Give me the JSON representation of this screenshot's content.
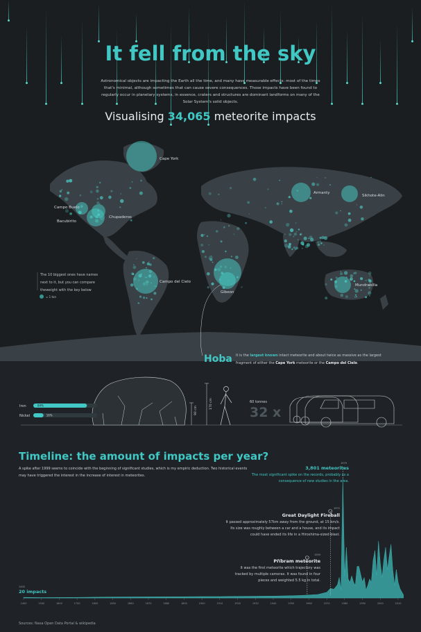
{
  "title": "It fell from the sky",
  "intro": "Astronomical objects are impacting the Earth all the time, and many have measurable effects: most of the times that's minimal, although sometimes that can cause severe consequences. Those impacts have been found to regularly occur in planetary systems, in essence, craters and structures are dominant landforms on many of the Solar System's solid objects.",
  "subtitle": {
    "prefix": "Visualising ",
    "count": "34,065",
    "suffix": " meteorite impacts"
  },
  "map": {
    "legend_text": "The 10 biggest ones have names next to it, but you can compare theweight with the key below",
    "legend_key": "= 1 ton",
    "named": [
      "Cape York",
      "Armanty",
      "Sikhote-Alin",
      "Campo Buelo",
      "Bacubirito",
      "Chupaderos",
      "Campo del Cielo",
      "Gibeon",
      "Mundrabilla"
    ]
  },
  "hoba": {
    "title": "Hoba",
    "desc_1": "It is the ",
    "desc_hl": "largest known",
    "desc_2": " intact meteorite and about twice as massive as the largest fragment of either the ",
    "desc_b1": "Cape York",
    "desc_3": " meteorite or the ",
    "desc_b2": "Campo del Cielo",
    "desc_4": ".",
    "iron_label": "Iron",
    "iron_value": "84%",
    "nickel_label": "Nickel",
    "nickel_value": "16%",
    "height_label": "90 cm",
    "person_label": "170 cm",
    "tonnes_label": "60 tonnes",
    "multiplier": "32 x"
  },
  "timeline": {
    "title": "Timeline: the amount of impacts per year?",
    "desc": "A spike after 1999 seems to coincide with the beginning of significant studies, which is my empiric deduction. Two historical events may have triggered the interest in the increase of interest in meteorites.",
    "start_year": "1400",
    "start_value": "20 impacts",
    "peak_year": "1979",
    "peak_value": "3,801 meteorites",
    "peak_desc": "The most significant spike on the records, probably as a consequence of new studies in the area.",
    "fireball_year": "1972",
    "fireball_title": "Great Daylight Fireball",
    "fireball_desc": "It passed approximately 57km away from the ground, at 15 km/s. Its size was roughly between a car and a house, and its impact could have ended its life in a Hiroshima-sized blast.",
    "pribram_year": "1959",
    "pribram_title": "Příbram meteorite",
    "pribram_desc": "It was the first meteorite which trajectory was tracked by multiple cameras. It was found in four pieces and weighted 5.5 kg in total.",
    "sources": "Sources: Nasa Open Data Portal & wikipedia"
  },
  "colors": {
    "accent": "#41c7c4",
    "bg_top": "#1b1e21",
    "bg_bottom": "#1f2327"
  },
  "chart_data": [
    {
      "type": "area",
      "title": "Timeline: the amount of impacts per year?",
      "x_ticks": [
        "1400",
        "1500",
        "1600",
        "1700",
        "1800",
        "1850",
        "1860",
        "1870",
        "1880",
        "1890",
        "1900",
        "1910",
        "1920",
        "1930",
        "1940",
        "1950",
        "1960",
        "1970",
        "1980",
        "1990",
        "2000",
        "2010"
      ],
      "x": [
        1400,
        1500,
        1600,
        1700,
        1800,
        1850,
        1870,
        1890,
        1900,
        1910,
        1920,
        1930,
        1940,
        1950,
        1955,
        1959,
        1965,
        1970,
        1972,
        1974,
        1976,
        1977,
        1978,
        1979,
        1980,
        1981,
        1982,
        1983,
        1984,
        1985,
        1986,
        1987,
        1988,
        1990,
        1991,
        1992,
        1993,
        1994,
        1995,
        1996,
        1997,
        1998,
        1999,
        2000,
        2001,
        2002,
        2003,
        2004,
        2005,
        2006,
        2007,
        2008,
        2009,
        2010,
        2011,
        2012,
        2013
      ],
      "y": [
        20,
        12,
        15,
        18,
        25,
        30,
        35,
        40,
        45,
        45,
        50,
        55,
        60,
        70,
        80,
        90,
        110,
        180,
        300,
        280,
        420,
        650,
        250,
        3801,
        700,
        1600,
        600,
        500,
        700,
        500,
        400,
        1000,
        1000,
        500,
        650,
        250,
        400,
        600,
        500,
        1200,
        1500,
        700,
        1800,
        1100,
        650,
        1200,
        1600,
        900,
        1300,
        1700,
        900,
        400,
        900,
        500,
        300,
        200,
        100
      ],
      "ylim": [
        0,
        3801
      ],
      "annotations": [
        "20 impacts",
        "3,801 meteorites",
        "Great Daylight Fireball",
        "Příbram meteorite"
      ]
    },
    {
      "type": "bar",
      "title": "Hoba composition",
      "categories": [
        "Iron",
        "Nickel"
      ],
      "values": [
        84,
        16
      ]
    }
  ]
}
